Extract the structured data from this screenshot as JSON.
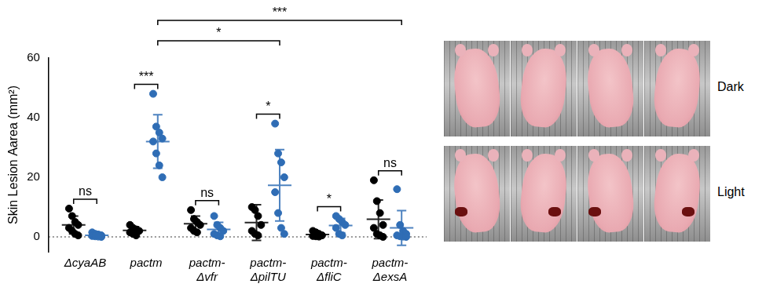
{
  "chart_data": {
    "type": "scatter",
    "y_label": "Skin Lesion Aarea (mm²)",
    "categories": [
      "ΔcyaAB",
      "pactm",
      "pactm-Δvfr",
      "pactm-ΔpilTU",
      "pactm-ΔfliC",
      "pactm-ΔexsA"
    ],
    "series": [
      {
        "name": "Dark",
        "color": "#000000",
        "values": [
          [
            9.5,
            7,
            5,
            4,
            3,
            2,
            1,
            0.5
          ],
          [
            4,
            3,
            2.5,
            2,
            1.5,
            1,
            0.5
          ],
          [
            9,
            6,
            5,
            4,
            3,
            2,
            1.5
          ],
          [
            10,
            9,
            7,
            4,
            2,
            1,
            0.5
          ],
          [
            2,
            1.5,
            1,
            0.5,
            0.3,
            0.2,
            0.1
          ],
          [
            19,
            12,
            8,
            4,
            3,
            1,
            0.5,
            0
          ]
        ],
        "mean": [
          4,
          2.2,
          4.4,
          4.8,
          0.8,
          5.9
        ],
        "sd": [
          3,
          1.2,
          2.6,
          6,
          0.7,
          6.5
        ]
      },
      {
        "name": "Light",
        "color": "#2f6db5",
        "values": [
          [
            1.5,
            1,
            0.8,
            0.5,
            0.3,
            0.2,
            0.1,
            0
          ],
          [
            48,
            37,
            35,
            33,
            32,
            28,
            24,
            20
          ],
          [
            7,
            4,
            3,
            2,
            1,
            0.5,
            0.2
          ],
          [
            38,
            28,
            25,
            20,
            15,
            8,
            3,
            1
          ],
          [
            7,
            6,
            5,
            4,
            3,
            1,
            0.5
          ],
          [
            16,
            4,
            2,
            1,
            0.5,
            0.2,
            0.1,
            0
          ]
        ],
        "mean": [
          0.5,
          32,
          2.5,
          17.3,
          3.8,
          3
        ],
        "sd": [
          0.5,
          9,
          2.4,
          12,
          2.4,
          5.8
        ]
      }
    ],
    "ylim": [
      -5,
      60
    ],
    "yticks": [
      0,
      20,
      40,
      60
    ],
    "reference_line": 0,
    "grid": false,
    "comparisons": [
      {
        "from": {
          "category": "ΔcyaAB",
          "series": "Dark"
        },
        "to": {
          "category": "ΔcyaAB",
          "series": "Light"
        },
        "label": "ns"
      },
      {
        "from": {
          "category": "pactm",
          "series": "Dark"
        },
        "to": {
          "category": "pactm",
          "series": "Light"
        },
        "label": "***"
      },
      {
        "from": {
          "category": "pactm-Δvfr",
          "series": "Dark"
        },
        "to": {
          "category": "pactm-Δvfr",
          "series": "Light"
        },
        "label": "ns"
      },
      {
        "from": {
          "category": "pactm-ΔpilTU",
          "series": "Dark"
        },
        "to": {
          "category": "pactm-ΔpilTU",
          "series": "Light"
        },
        "label": "*"
      },
      {
        "from": {
          "category": "pactm-ΔfliC",
          "series": "Dark"
        },
        "to": {
          "category": "pactm-ΔfliC",
          "series": "Light"
        },
        "label": "*"
      },
      {
        "from": {
          "category": "pactm-ΔexsA",
          "series": "Dark"
        },
        "to": {
          "category": "pactm-ΔexsA",
          "series": "Light"
        },
        "label": "ns"
      },
      {
        "from": {
          "category": "pactm",
          "series": "Light"
        },
        "to": {
          "category": "pactm-ΔpilTU",
          "series": "Light"
        },
        "label": "*"
      },
      {
        "from": {
          "category": "pactm",
          "series": "Light"
        },
        "to": {
          "category": "pactm-ΔexsA",
          "series": "Light"
        },
        "label": "***"
      }
    ]
  }
}
